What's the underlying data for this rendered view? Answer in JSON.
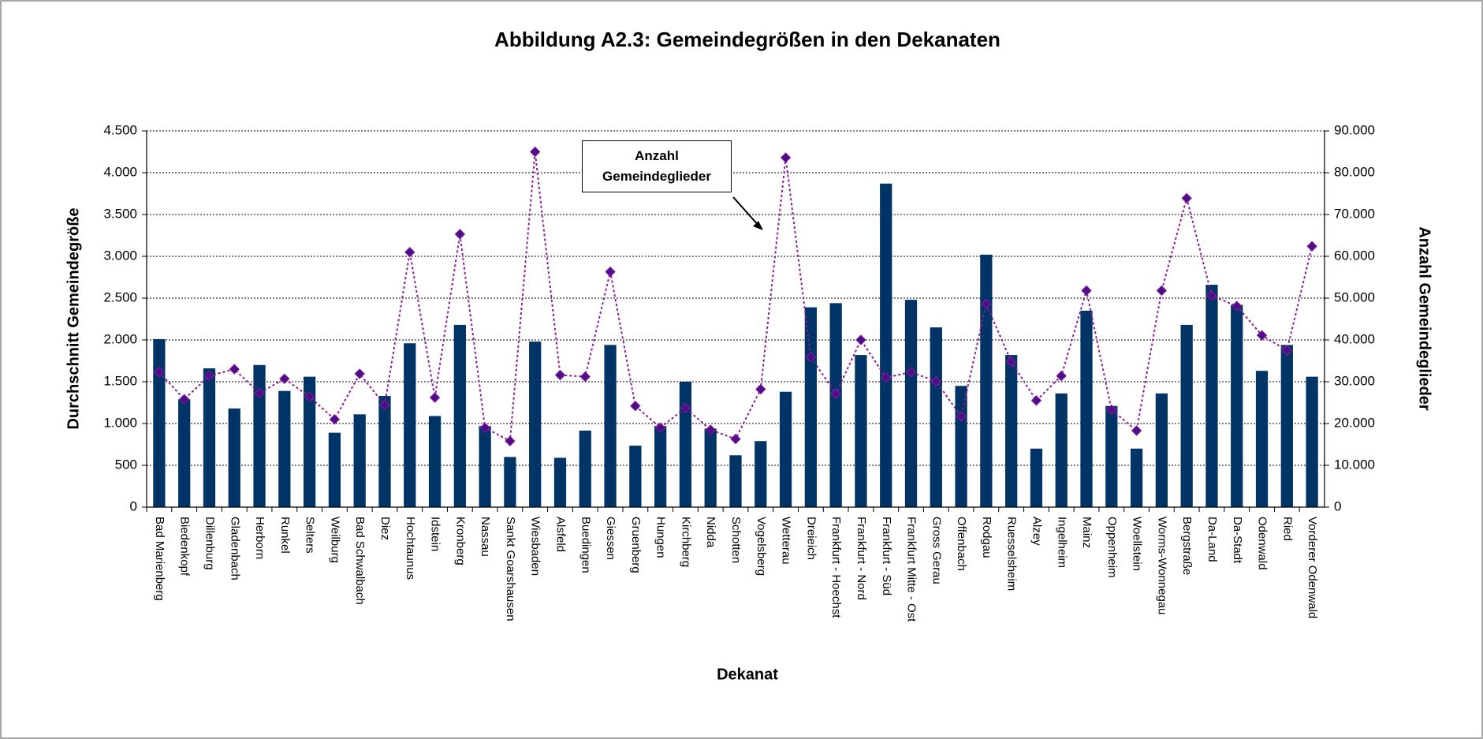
{
  "chart_data": {
    "type": "bar_line",
    "title": "Abbildung A2.3: Gemeindegrößen in den Dekanaten",
    "x_label": "Dekanat",
    "y_label": "Durchschnitt Gemeindegröße",
    "y2_label": "Anzahl Gemeindeglieder",
    "annotation": "Anzahl Gemeindeglieder",
    "grid": true,
    "categories": [
      "Bad Marienberg",
      "Biedenkopf",
      "Dillenburg",
      "Gladenbach",
      "Herborn",
      "Runkel",
      "Selters",
      "Weilburg",
      "Bad Schwalbach",
      "Diez",
      "Hochtaunus",
      "Idstein",
      "Kronberg",
      "Nassau",
      "Sankt Goarshausen",
      "Wiesbaden",
      "Alsfeld",
      "Buedingen",
      "Giessen",
      "Gruenberg",
      "Hungen",
      "Kirchberg",
      "Nidda",
      "Schotten",
      "Vogelsberg",
      "Wetterau",
      "Dreieich",
      "Frankfurt - Hoechst",
      "Frankfurt - Nord",
      "Frankfurt - Süd",
      "Frankfurt Mitte - Ost",
      "Gross Gerau",
      "Offenbach",
      "Rodgau",
      "Ruesselsheim",
      "Alzey",
      "Ingelheim",
      "Mainz",
      "Oppenheim",
      "Woellstein",
      "Worms-Wonnegau",
      "Bergstraße",
      "Da-Land",
      "Da-Stadt",
      "Odenwald",
      "Ried",
      "Vorderer Odenwald"
    ],
    "series": [
      {
        "type": "bar",
        "color": "#003466",
        "values": [
          2010,
          1290,
          1660,
          1180,
          1700,
          1390,
          1560,
          890,
          1110,
          1330,
          1960,
          1090,
          2180,
          970,
          600,
          1980,
          590,
          915,
          1940,
          735,
          970,
          1500,
          940,
          620,
          790,
          1380,
          2390,
          2440,
          1820,
          3870,
          2480,
          2150,
          1450,
          3020,
          1820,
          700,
          1360,
          2350,
          1210,
          700,
          1360,
          2180,
          2660,
          2420,
          1630,
          1940,
          1560
        ]
      },
      {
        "type": "line",
        "axis": "y2",
        "color": "#8b1a9b",
        "marker_color": "#4b0f8a",
        "values": [
          32300,
          25800,
          31400,
          33000,
          27300,
          30700,
          26400,
          21000,
          31900,
          24400,
          61000,
          26200,
          65300,
          19000,
          15800,
          85000,
          31600,
          31200,
          56300,
          24200,
          19000,
          23700,
          18500,
          16300,
          28200,
          83600,
          35900,
          27100,
          40000,
          31000,
          32300,
          30100,
          21700,
          48600,
          34800,
          25500,
          31400,
          51800,
          23300,
          18300,
          51800,
          73900,
          50600,
          48100,
          41100,
          37500,
          62400
        ]
      }
    ],
    "ylim": [
      0,
      4500
    ],
    "yticks": [
      0,
      {
        "value": 500,
        "label": "500"
      },
      {
        "value": 1000,
        "label": "1.000"
      },
      {
        "value": 1500,
        "label": "1.500"
      },
      {
        "value": 2000,
        "label": "2.000"
      },
      {
        "value": 2500,
        "label": "2.500"
      },
      {
        "value": 3000,
        "label": "3.000"
      },
      {
        "value": 3500,
        "label": "3.500"
      },
      {
        "value": 4000,
        "label": "4.000"
      },
      {
        "value": 4500,
        "label": "4.500"
      }
    ],
    "y2lim": [
      0,
      90000
    ],
    "y2ticks": [
      0,
      {
        "value": 10000,
        "label": "10.000"
      },
      {
        "value": 20000,
        "label": "20.000"
      },
      {
        "value": 30000,
        "label": "30.000"
      },
      {
        "value": 40000,
        "label": "40.000"
      },
      {
        "value": 50000,
        "label": "50.000"
      },
      {
        "value": 60000,
        "label": "60.000"
      },
      {
        "value": 70000,
        "label": "70.000"
      },
      {
        "value": 80000,
        "label": "80.000"
      },
      {
        "value": 90000,
        "label": "90.000"
      }
    ]
  }
}
